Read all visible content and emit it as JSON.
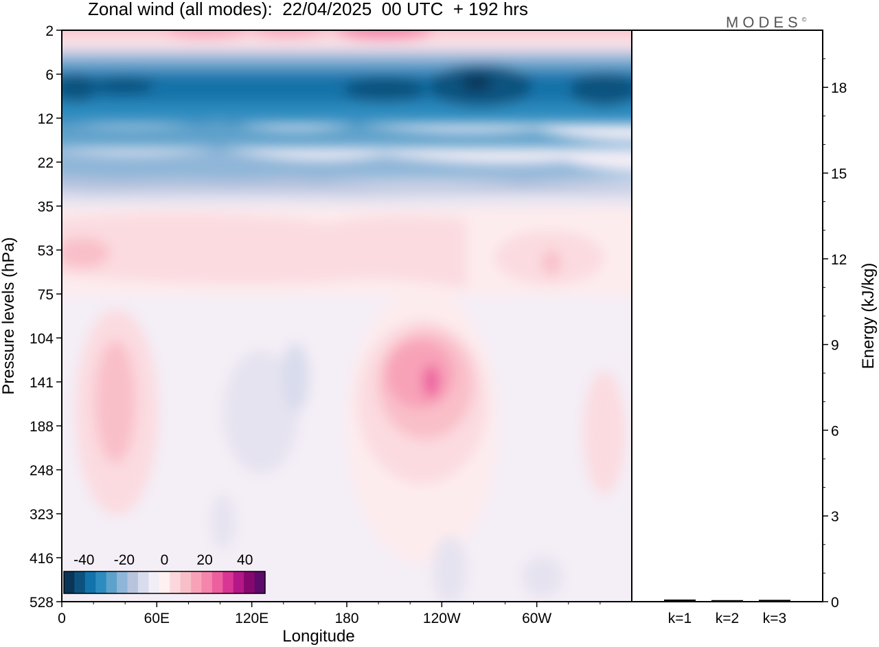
{
  "title": "Zonal wind (all modes):  22/04/2025  00 UTC  + 192 hrs",
  "logo": "MODES",
  "logo_mark": "©",
  "chart_data": [
    {
      "type": "heatmap",
      "title": "Zonal wind (all modes):  22/04/2025  00 UTC  + 192 hrs",
      "xlabel": "Longitude",
      "ylabel": "Pressure levels (hPa)",
      "x_ticks": [
        "0",
        "60E",
        "120E",
        "180",
        "120W",
        "60W"
      ],
      "x_range_deg": [
        0,
        360
      ],
      "y_ticks": [
        "2",
        "6",
        "12",
        "22",
        "35",
        "53",
        "75",
        "104",
        "141",
        "188",
        "248",
        "323",
        "416",
        "528"
      ],
      "y_scale": "level-index (pressure increasing downward)",
      "colorbar": {
        "ticks": [
          "-40",
          "-20",
          "0",
          "20",
          "40"
        ],
        "range": [
          -50,
          50
        ],
        "colors": [
          "#0a3556",
          "#0d527f",
          "#1273aa",
          "#2d8cbf",
          "#5ea1cb",
          "#8fb6d8",
          "#b8c4de",
          "#d8dcec",
          "#f2eef6",
          "#fff1f1",
          "#fcd8dd",
          "#f9bfc9",
          "#f8a2b8",
          "#f585ab",
          "#ed5f9f",
          "#d93595",
          "#b41787",
          "#86086f",
          "#5e0a6a"
        ]
      },
      "features": [
        {
          "level": "2",
          "lon_range": [
            0,
            360
          ],
          "value": 8
        },
        {
          "level": "6-12",
          "lon_range": [
            0,
            360
          ],
          "value": -35
        },
        {
          "level": "8",
          "lon": 240,
          "value": -48
        },
        {
          "level": "22",
          "lon_range": [
            0,
            360
          ],
          "value": -12
        },
        {
          "level": "53",
          "lon_range": [
            0,
            360
          ],
          "value": 8
        },
        {
          "level": "141",
          "lon": 30,
          "value": 18
        },
        {
          "level": "141",
          "lon": 235,
          "value": 30
        },
        {
          "level": "141-188",
          "lon": 140,
          "value": -5
        }
      ]
    },
    {
      "type": "bar",
      "categories": [
        "k=1",
        "k=2",
        "k=3"
      ],
      "values": [
        0.05,
        0.03,
        0.04
      ],
      "ylabel": "Energy (kJ/kg)",
      "y_ticks": [
        "0",
        "3",
        "6",
        "9",
        "12",
        "15",
        "18"
      ],
      "ylim": [
        0,
        20
      ]
    }
  ]
}
